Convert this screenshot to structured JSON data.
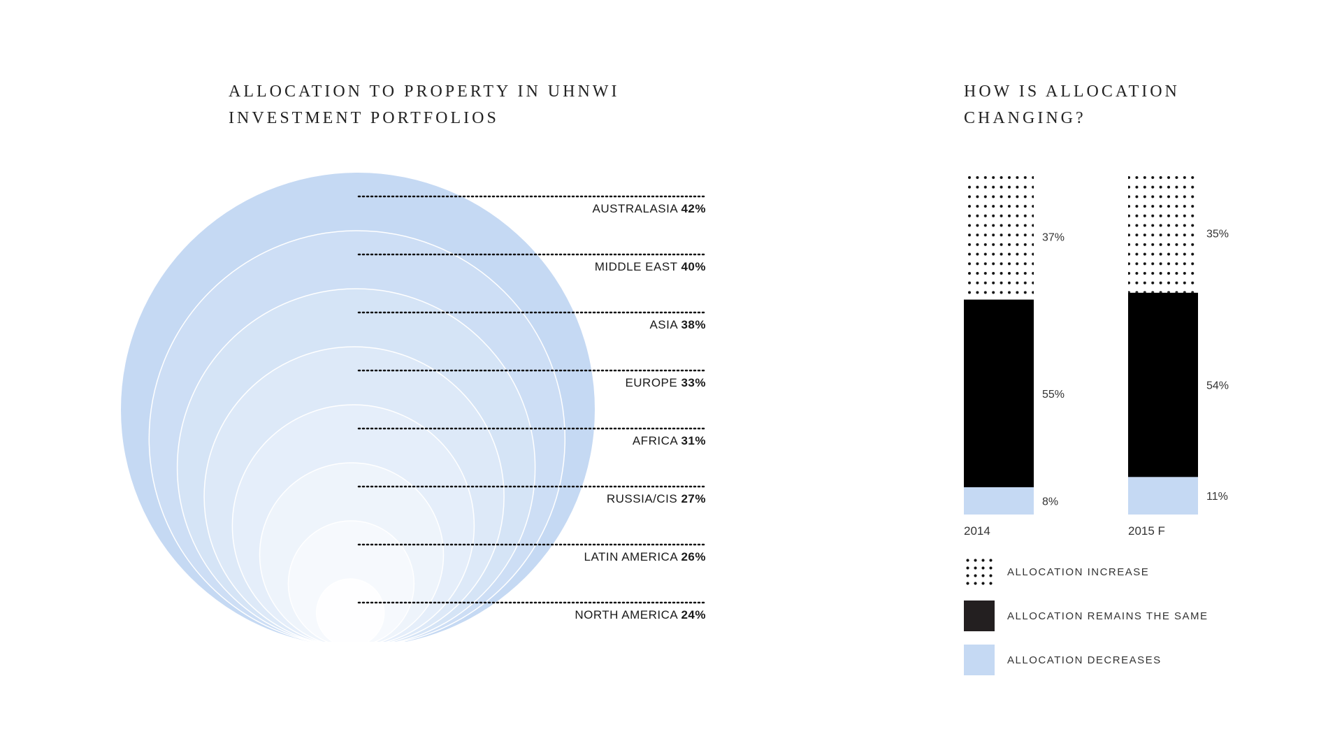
{
  "colors": {
    "blue": "#c5d9f3",
    "black": "#000000",
    "dark_swatch": "#231f20",
    "dot": "#111111"
  },
  "chart_data": [
    {
      "type": "bar",
      "title": [
        "ALLOCATION TO PROPERTY IN UHNWI",
        "INVESTMENT PORTFOLIOS"
      ],
      "categories": [
        "AUSTRALASIA",
        "MIDDLE EAST",
        "ASIA",
        "EUROPE",
        "AFRICA",
        "RUSSIA/CIS",
        "LATIN AMERICA",
        "NORTH AMERICA"
      ],
      "values": [
        42,
        40,
        38,
        33,
        31,
        27,
        26,
        24
      ],
      "value_labels": [
        "42%",
        "40%",
        "38%",
        "33%",
        "31%",
        "27%",
        "26%",
        "24%"
      ]
    },
    {
      "type": "bar",
      "stacked": true,
      "title": [
        "HOW IS ALLOCATION",
        "CHANGING?"
      ],
      "categories": [
        "2014",
        "2015 F"
      ],
      "series": [
        {
          "name": "ALLOCATION DECREASES",
          "values": [
            8,
            11
          ],
          "labels": [
            "8%",
            "11%"
          ],
          "style": "blue"
        },
        {
          "name": "ALLOCATION REMAINS THE SAME",
          "values": [
            55,
            54
          ],
          "labels": [
            "55%",
            "54%"
          ],
          "style": "black"
        },
        {
          "name": "ALLOCATION INCREASE",
          "values": [
            37,
            35
          ],
          "labels": [
            "37%",
            "35%"
          ],
          "style": "dots"
        }
      ],
      "legend": [
        {
          "label": "ALLOCATION INCREASE",
          "style": "dots"
        },
        {
          "label": "ALLOCATION REMAINS THE SAME",
          "style": "dark"
        },
        {
          "label": "ALLOCATION DECREASES",
          "style": "blue"
        }
      ]
    }
  ]
}
